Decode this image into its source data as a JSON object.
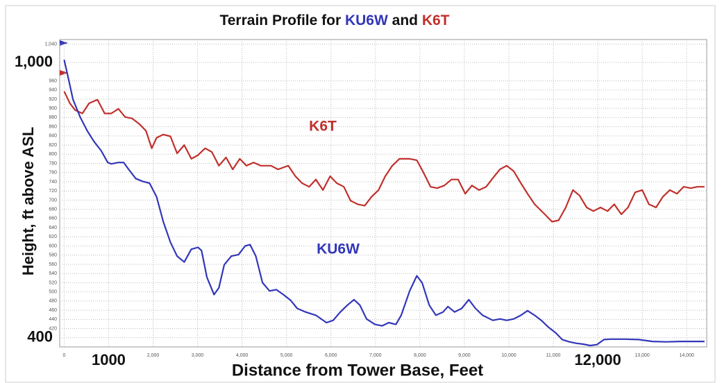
{
  "chart_data": {
    "type": "line",
    "title": "Terrain Profile for KU6W and K6T",
    "ylabel": "Height, ft above ASL",
    "xlabel": "Distance from Tower Base, Feet",
    "series": [
      {
        "name": "K6T",
        "color": "#c0302c",
        "x": [
          0,
          130,
          250,
          410,
          560,
          750,
          910,
          1060,
          1220,
          1370,
          1530,
          1690,
          1840,
          1970,
          2080,
          2230,
          2390,
          2540,
          2700,
          2860,
          3010,
          3170,
          3320,
          3480,
          3640,
          3790,
          3950,
          4100,
          4260,
          4420,
          4650,
          4810,
          5040,
          5200,
          5350,
          5510,
          5660,
          5820,
          5980,
          6130,
          6290,
          6440,
          6600,
          6760,
          6910,
          7070,
          7220,
          7380,
          7540,
          7770,
          7930,
          8080,
          8240,
          8390,
          8550,
          8710,
          8860,
          9020,
          9170,
          9330,
          9490,
          9640,
          9800,
          9950,
          10110,
          10270,
          10420,
          10580,
          10810,
          10970,
          11120,
          11280,
          11440,
          11590,
          11750,
          11900,
          12060,
          12220,
          12370,
          12530,
          12680,
          12840,
          13000,
          13150,
          13310,
          13460,
          13620,
          13780,
          13930,
          14090,
          14240,
          14400
        ],
        "values": [
          937,
          911,
          896,
          889,
          911,
          919,
          889,
          889,
          899,
          881,
          878,
          866,
          851,
          813,
          836,
          843,
          839,
          802,
          820,
          790,
          798,
          813,
          805,
          775,
          793,
          767,
          790,
          775,
          782,
          775,
          775,
          767,
          775,
          752,
          737,
          729,
          745,
          722,
          752,
          737,
          729,
          699,
          691,
          688,
          707,
          722,
          752,
          775,
          790,
          790,
          787,
          760,
          729,
          726,
          732,
          745,
          745,
          714,
          732,
          722,
          729,
          748,
          767,
          775,
          763,
          737,
          714,
          691,
          669,
          653,
          656,
          684,
          722,
          710,
          684,
          676,
          684,
          676,
          691,
          669,
          684,
          717,
          722,
          691,
          684,
          707,
          722,
          714,
          729,
          726,
          729,
          729
        ]
      },
      {
        "name": "KU6W",
        "color": "#3236b8",
        "x": [
          0,
          80,
          200,
          360,
          520,
          670,
          830,
          980,
          1060,
          1220,
          1340,
          1450,
          1610,
          1760,
          1920,
          2080,
          2230,
          2390,
          2540,
          2700,
          2860,
          3010,
          3090,
          3210,
          3370,
          3480,
          3600,
          3760,
          3920,
          4070,
          4180,
          4310,
          4460,
          4620,
          4770,
          4930,
          5090,
          5240,
          5430,
          5660,
          5900,
          6050,
          6210,
          6370,
          6520,
          6650,
          6800,
          6990,
          7150,
          7300,
          7460,
          7580,
          7770,
          7930,
          8050,
          8210,
          8360,
          8520,
          8630,
          8780,
          8940,
          9100,
          9250,
          9410,
          9640,
          9800,
          9950,
          10110,
          10270,
          10420,
          10580,
          10730,
          10890,
          11050,
          11200,
          11360,
          11510,
          11670,
          11830,
          11980,
          12140,
          12290,
          12610,
          12920,
          13230,
          13540,
          13850,
          14170,
          14400
        ],
        "values": [
          1006,
          972,
          919,
          881,
          851,
          828,
          808,
          782,
          779,
          782,
          782,
          767,
          747,
          741,
          737,
          707,
          653,
          608,
          578,
          565,
          593,
          597,
          590,
          532,
          494,
          509,
          559,
          578,
          581,
          600,
          603,
          578,
          520,
          502,
          505,
          494,
          482,
          464,
          456,
          449,
          433,
          438,
          456,
          471,
          483,
          471,
          441,
          429,
          426,
          433,
          429,
          449,
          502,
          535,
          520,
          471,
          449,
          456,
          468,
          456,
          464,
          483,
          464,
          449,
          438,
          441,
          438,
          441,
          449,
          459,
          449,
          438,
          423,
          411,
          396,
          391,
          388,
          386,
          383,
          385,
          396,
          397,
          397,
          396,
          392,
          391,
          392,
          392,
          392
        ]
      }
    ],
    "xlim": [
      -100,
      14450
    ],
    "ylim": [
      380,
      1050
    ],
    "xticks": [
      0,
      {
        "value": 2000,
        "label": "2,000"
      },
      {
        "value": 3000,
        "label": "3,000"
      },
      {
        "value": 4000,
        "label": "4,000"
      },
      {
        "value": 5000,
        "label": "5,000"
      },
      {
        "value": 6000,
        "label": "6,000"
      },
      {
        "value": 7000,
        "label": "7,000"
      },
      {
        "value": 8000,
        "label": "8,000"
      },
      {
        "value": 9000,
        "label": "9,000"
      },
      {
        "value": 10000,
        "label": "10,000"
      },
      {
        "value": 11000,
        "label": "11,000"
      },
      {
        "value": 13000,
        "label": "13,000"
      },
      {
        "value": 14000,
        "label": "14,000"
      }
    ],
    "major_xticks": [
      {
        "value": 1000,
        "label": "1000"
      },
      {
        "value": 12000,
        "label": "12,000"
      }
    ],
    "yticks": [
      420,
      440,
      460,
      480,
      500,
      520,
      540,
      560,
      580,
      600,
      620,
      640,
      660,
      680,
      700,
      720,
      740,
      760,
      780,
      800,
      820,
      840,
      860,
      880,
      900,
      920,
      940,
      960,
      {
        "value": 1040,
        "label": "1,040"
      }
    ],
    "major_yticks": [
      400,
      {
        "value": 1000,
        "label": "1,000"
      }
    ],
    "grid": true
  }
}
